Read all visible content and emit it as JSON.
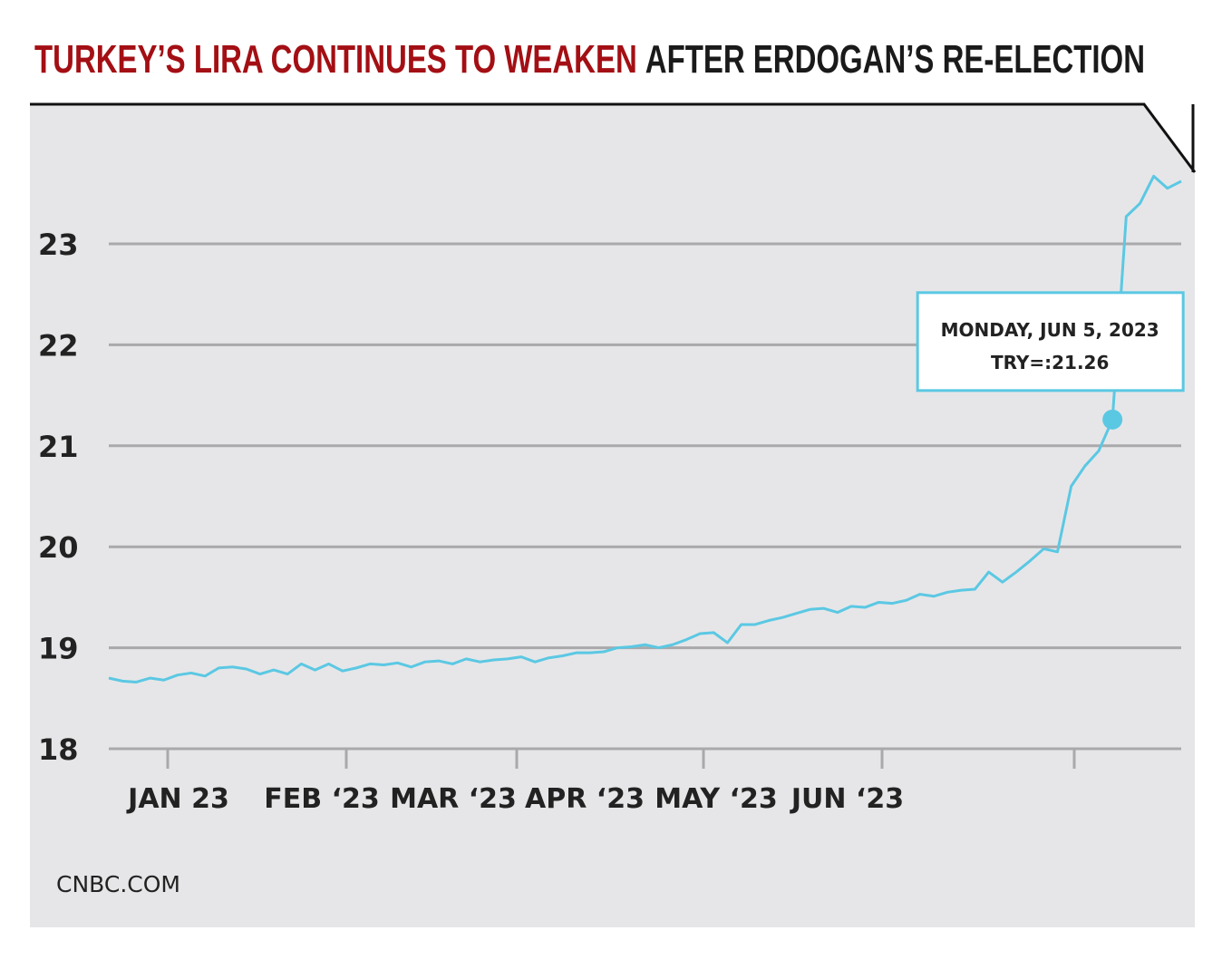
{
  "chart_data": {
    "type": "line",
    "title": {
      "highlight": "TURKEY’S LIRA CONTINUES TO WEAKEN",
      "rest": "AFTER ERDOGAN’S RE-ELECTION"
    },
    "x_labels": [
      "JAN 23",
      "FEB ‘23",
      "MAR ‘23",
      "APR ‘23",
      "MAY ‘23",
      "JUN ‘23"
    ],
    "series": [
      {
        "name": "TRY=",
        "color": "#5bc8e3",
        "values": [
          18.7,
          18.67,
          18.66,
          18.7,
          18.68,
          18.73,
          18.75,
          18.72,
          18.8,
          18.81,
          18.79,
          18.74,
          18.78,
          18.74,
          18.84,
          18.78,
          18.84,
          18.77,
          18.8,
          18.84,
          18.83,
          18.85,
          18.81,
          18.86,
          18.87,
          18.84,
          18.89,
          18.86,
          18.88,
          18.89,
          18.91,
          18.86,
          18.9,
          18.92,
          18.95,
          18.95,
          18.96,
          19.0,
          19.01,
          19.03,
          19.0,
          19.03,
          19.08,
          19.14,
          19.15,
          19.05,
          19.23,
          19.23,
          19.27,
          19.3,
          19.34,
          19.38,
          19.39,
          19.35,
          19.41,
          19.4,
          19.45,
          19.44,
          19.47,
          19.53,
          19.51,
          19.55,
          19.57,
          19.58,
          19.75,
          19.65,
          19.75,
          19.86,
          19.98,
          19.95,
          20.6,
          20.8,
          20.95,
          21.26,
          23.27,
          23.4,
          23.67,
          23.55,
          23.62
        ]
      }
    ],
    "annotation": {
      "date": "MONDAY, JUN 5, 2023",
      "text": "TRY=:21.26",
      "value": 21.26
    },
    "ylim": [
      18,
      24.4
    ],
    "yticks": [
      18,
      19,
      20,
      21,
      22,
      23
    ],
    "grid": true,
    "source": "CNBC.COM"
  }
}
